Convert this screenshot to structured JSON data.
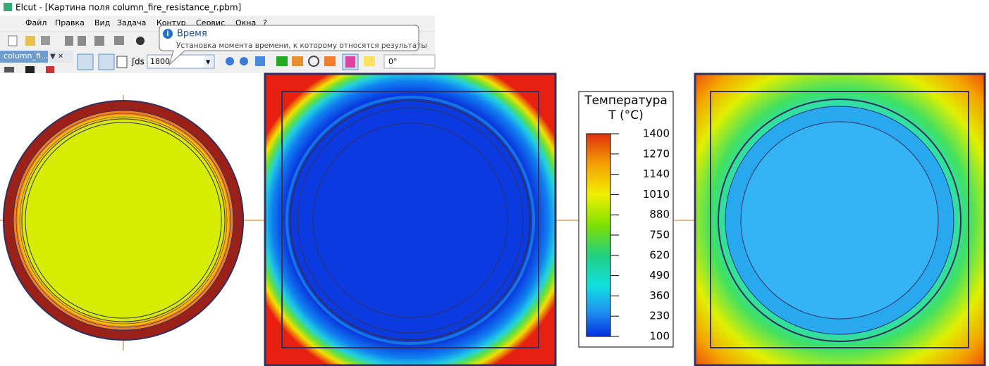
{
  "window": {
    "title": "Elcut - [Картина поля column_fire_resistance_r.pbm]",
    "menu": [
      "Файл",
      "Правка",
      "Вид",
      "Задача",
      "Контур",
      "Сервис",
      "Окна",
      "?"
    ],
    "tab": "column_fi...",
    "time_field": "1800",
    "angle_field": "0°",
    "tooltip": {
      "title": "Время",
      "text": "Установка момента времени, к которому относятся результаты"
    }
  },
  "legend": {
    "title": "Температура",
    "subtitle": "T (°C)",
    "ticks": [
      1400,
      1270,
      1140,
      1010,
      880,
      750,
      620,
      490,
      360,
      230,
      100
    ]
  }
}
